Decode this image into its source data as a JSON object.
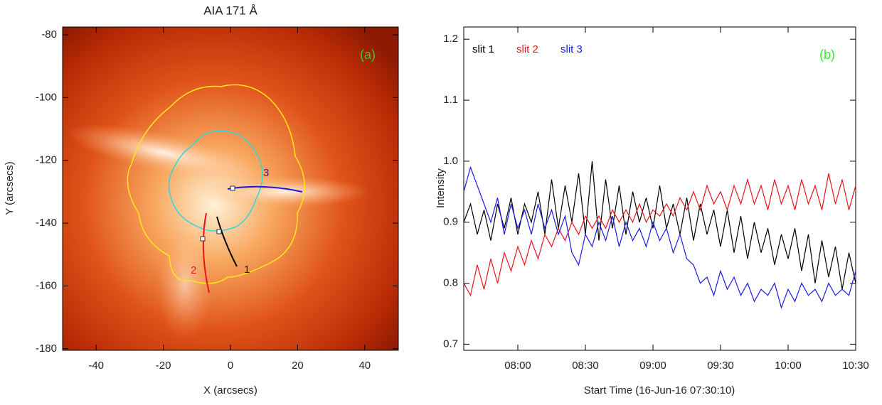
{
  "chart_data": [
    {
      "type": "image",
      "title": "AIA 171 Å",
      "xlabel": "X (arcsecs)",
      "ylabel": "Y (arcsecs)",
      "xlim": [
        -50,
        50
      ],
      "ylim": [
        -180.5,
        -77.5
      ],
      "xticks": [
        -40,
        -20,
        0,
        20,
        40
      ],
      "yticks": [
        -80,
        -100,
        -120,
        -140,
        -160,
        -180
      ],
      "panel_label": "(a)",
      "annotations": [
        "1",
        "2",
        "3"
      ]
    },
    {
      "type": "line",
      "xlabel": "Start Time (16-Jun-16 07:30:10)",
      "ylabel": "Intensity",
      "panel_label": "(b)",
      "xlim": [
        "07:36",
        "10:30"
      ],
      "xticks": [
        "08:00",
        "08:30",
        "09:00",
        "09:30",
        "10:00",
        "10:30"
      ],
      "ylim": [
        0.69,
        1.22
      ],
      "yticks": [
        0.7,
        0.8,
        0.9,
        {
          "value": 1,
          "label": "1.0"
        },
        1.1,
        1.2
      ],
      "x": [
        "07:36",
        "07:39",
        "07:42",
        "07:45",
        "07:48",
        "07:51",
        "07:54",
        "07:57",
        "08:00",
        "08:03",
        "08:06",
        "08:09",
        "08:12",
        "08:15",
        "08:18",
        "08:21",
        "08:24",
        "08:27",
        "08:30",
        "08:33",
        "08:36",
        "08:39",
        "08:42",
        "08:45",
        "08:48",
        "08:51",
        "08:54",
        "08:57",
        "09:00",
        "09:03",
        "09:06",
        "09:09",
        "09:12",
        "09:15",
        "09:18",
        "09:21",
        "09:24",
        "09:27",
        "09:30",
        "09:33",
        "09:36",
        "09:39",
        "09:42",
        "09:45",
        "09:48",
        "09:51",
        "09:54",
        "09:57",
        "10:00",
        "10:03",
        "10:06",
        "10:09",
        "10:12",
        "10:15",
        "10:18",
        "10:21",
        "10:24",
        "10:27",
        "10:30"
      ],
      "series": [
        {
          "name": "slit 1",
          "color": "#000000",
          "values": [
            0.9,
            0.93,
            0.88,
            0.92,
            0.87,
            0.93,
            0.89,
            0.94,
            0.88,
            0.93,
            0.9,
            0.95,
            0.88,
            0.97,
            0.89,
            0.96,
            0.9,
            0.98,
            0.88,
            1.0,
            0.87,
            0.97,
            0.89,
            0.96,
            0.88,
            0.95,
            0.9,
            0.94,
            0.89,
            0.96,
            0.89,
            0.93,
            0.88,
            0.94,
            0.87,
            0.93,
            0.88,
            0.92,
            0.86,
            0.92,
            0.85,
            0.91,
            0.84,
            0.9,
            0.85,
            0.89,
            0.83,
            0.88,
            0.84,
            0.89,
            0.82,
            0.88,
            0.8,
            0.87,
            0.81,
            0.86,
            0.79,
            0.85,
            0.8
          ]
        },
        {
          "name": "slit 2",
          "color": "#e8141c",
          "values": [
            0.8,
            0.78,
            0.83,
            0.79,
            0.84,
            0.8,
            0.85,
            0.82,
            0.86,
            0.83,
            0.87,
            0.84,
            0.88,
            0.86,
            0.89,
            0.87,
            0.9,
            0.88,
            0.91,
            0.89,
            0.91,
            0.89,
            0.92,
            0.9,
            0.92,
            0.9,
            0.93,
            0.9,
            0.92,
            0.91,
            0.93,
            0.91,
            0.94,
            0.92,
            0.95,
            0.92,
            0.96,
            0.93,
            0.95,
            0.92,
            0.96,
            0.93,
            0.97,
            0.93,
            0.96,
            0.92,
            0.97,
            0.93,
            0.96,
            0.92,
            0.97,
            0.93,
            0.96,
            0.92,
            0.98,
            0.93,
            0.97,
            0.92,
            0.96
          ]
        },
        {
          "name": "slit 3",
          "color": "#1a1ae6",
          "values": [
            0.95,
            0.99,
            0.96,
            0.93,
            0.9,
            0.94,
            0.88,
            0.93,
            0.89,
            0.92,
            0.88,
            0.93,
            0.89,
            0.92,
            0.88,
            0.91,
            0.85,
            0.83,
            0.88,
            0.86,
            0.9,
            0.87,
            0.91,
            0.86,
            0.9,
            0.87,
            0.89,
            0.86,
            0.9,
            0.87,
            0.89,
            0.85,
            0.88,
            0.84,
            0.83,
            0.8,
            0.81,
            0.78,
            0.82,
            0.79,
            0.81,
            0.78,
            0.8,
            0.77,
            0.79,
            0.78,
            0.8,
            0.76,
            0.79,
            0.77,
            0.8,
            0.78,
            0.79,
            0.77,
            0.8,
            0.78,
            0.79,
            0.78,
            0.82
          ]
        }
      ]
    }
  ]
}
